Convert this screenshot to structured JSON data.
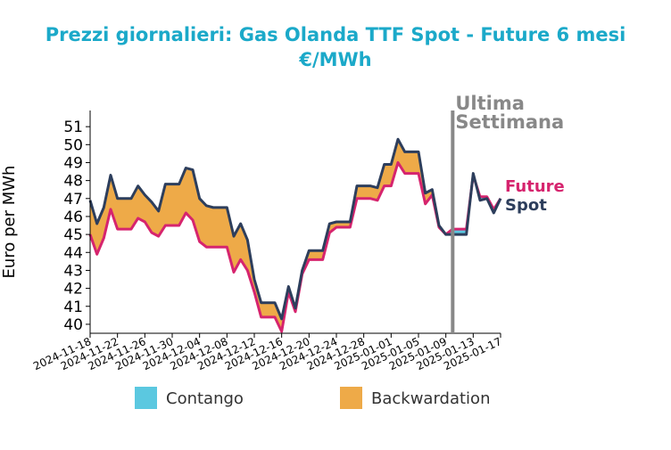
{
  "colors": {
    "title": "#1ba9c9",
    "spot": "#2d3e5c",
    "future": "#d6246e",
    "contango": "#5bc8e0",
    "backwardation": "#eeaa48",
    "marker": "#888888"
  },
  "chart_data": {
    "type": "area",
    "title_line1": "Prezzi giornalieri: Gas Olanda TTF Spot - Future 6 mesi",
    "title_line2": "€/MWh",
    "ylabel": "Euro per MWh",
    "ylim": [
      39.5,
      51.9
    ],
    "yticks": [
      40,
      41,
      42,
      43,
      44,
      45,
      46,
      47,
      48,
      49,
      50,
      51
    ],
    "xlim": [
      "2024-11-18",
      "2025-01-17"
    ],
    "xticks": [
      "2024-11-18",
      "2024-11-22",
      "2024-11-26",
      "2024-11-30",
      "2024-12-04",
      "2024-12-08",
      "2024-12-12",
      "2024-12-16",
      "2024-12-20",
      "2024-12-24",
      "2024-12-28",
      "2025-01-01",
      "2025-01-05",
      "2025-01-09",
      "2025-01-13",
      "2025-01-17"
    ],
    "annotation": {
      "date": "2025-01-10",
      "line1": "Ultima",
      "line2": "Settimana"
    },
    "legend": [
      "Contango",
      "Backwardation"
    ],
    "series": [
      {
        "name": "Spot",
        "x": [
          "2024-11-18",
          "2024-11-19",
          "2024-11-20",
          "2024-11-21",
          "2024-11-22",
          "2024-11-23",
          "2024-11-24",
          "2024-11-25",
          "2024-11-26",
          "2024-11-27",
          "2024-11-28",
          "2024-11-29",
          "2024-11-30",
          "2024-12-01",
          "2024-12-02",
          "2024-12-03",
          "2024-12-04",
          "2024-12-05",
          "2024-12-06",
          "2024-12-07",
          "2024-12-08",
          "2024-12-09",
          "2024-12-10",
          "2024-12-11",
          "2024-12-12",
          "2024-12-13",
          "2024-12-14",
          "2024-12-15",
          "2024-12-16",
          "2024-12-17",
          "2024-12-18",
          "2024-12-19",
          "2024-12-20",
          "2024-12-21",
          "2024-12-22",
          "2024-12-23",
          "2024-12-24",
          "2024-12-25",
          "2024-12-26",
          "2024-12-27",
          "2024-12-28",
          "2024-12-29",
          "2024-12-30",
          "2024-12-31",
          "2025-01-01",
          "2025-01-02",
          "2025-01-03",
          "2025-01-04",
          "2025-01-05",
          "2025-01-06",
          "2025-01-07",
          "2025-01-08",
          "2025-01-09",
          "2025-01-10",
          "2025-01-11",
          "2025-01-12",
          "2025-01-13",
          "2025-01-14",
          "2025-01-15",
          "2025-01-16",
          "2025-01-17"
        ],
        "values": [
          46.9,
          45.6,
          46.5,
          48.3,
          47.0,
          47.0,
          47.0,
          47.7,
          47.2,
          46.8,
          46.3,
          47.8,
          47.8,
          47.8,
          48.7,
          48.6,
          47.0,
          46.6,
          46.5,
          46.5,
          46.5,
          44.9,
          45.6,
          44.7,
          42.5,
          41.2,
          41.2,
          41.2,
          40.3,
          42.1,
          40.9,
          43.0,
          44.1,
          44.1,
          44.1,
          45.6,
          45.7,
          45.7,
          45.7,
          47.7,
          47.7,
          47.7,
          47.6,
          48.9,
          48.9,
          50.3,
          49.6,
          49.6,
          49.6,
          47.3,
          47.5,
          45.5,
          45.0,
          45.0,
          45.0,
          45.0,
          48.4,
          46.9,
          47.0,
          46.2,
          47.0
        ]
      },
      {
        "name": "Future",
        "x": [
          "2024-11-18",
          "2024-11-19",
          "2024-11-20",
          "2024-11-21",
          "2024-11-22",
          "2024-11-23",
          "2024-11-24",
          "2024-11-25",
          "2024-11-26",
          "2024-11-27",
          "2024-11-28",
          "2024-11-29",
          "2024-11-30",
          "2024-12-01",
          "2024-12-02",
          "2024-12-03",
          "2024-12-04",
          "2024-12-05",
          "2024-12-06",
          "2024-12-07",
          "2024-12-08",
          "2024-12-09",
          "2024-12-10",
          "2024-12-11",
          "2024-12-12",
          "2024-12-13",
          "2024-12-14",
          "2024-12-15",
          "2024-12-16",
          "2024-12-17",
          "2024-12-18",
          "2024-12-19",
          "2024-12-20",
          "2024-12-21",
          "2024-12-22",
          "2024-12-23",
          "2024-12-24",
          "2024-12-25",
          "2024-12-26",
          "2024-12-27",
          "2024-12-28",
          "2024-12-29",
          "2024-12-30",
          "2024-12-31",
          "2025-01-01",
          "2025-01-02",
          "2025-01-03",
          "2025-01-04",
          "2025-01-05",
          "2025-01-06",
          "2025-01-07",
          "2025-01-08",
          "2025-01-09",
          "2025-01-10",
          "2025-01-11",
          "2025-01-12",
          "2025-01-13",
          "2025-01-14",
          "2025-01-15",
          "2025-01-16",
          "2025-01-17"
        ],
        "values": [
          45.0,
          43.9,
          44.8,
          46.4,
          45.3,
          45.3,
          45.3,
          45.9,
          45.7,
          45.1,
          44.9,
          45.5,
          45.5,
          45.5,
          46.2,
          45.8,
          44.6,
          44.3,
          44.3,
          44.3,
          44.3,
          42.9,
          43.6,
          43.0,
          41.8,
          40.4,
          40.4,
          40.4,
          39.6,
          41.8,
          40.7,
          42.8,
          43.6,
          43.6,
          43.6,
          45.1,
          45.4,
          45.4,
          45.4,
          47.0,
          47.0,
          47.0,
          46.9,
          47.7,
          47.7,
          49.0,
          48.4,
          48.4,
          48.4,
          46.7,
          47.2,
          45.4,
          45.0,
          45.3,
          45.3,
          45.3,
          48.3,
          47.1,
          47.1,
          46.4,
          47.0
        ]
      }
    ]
  }
}
